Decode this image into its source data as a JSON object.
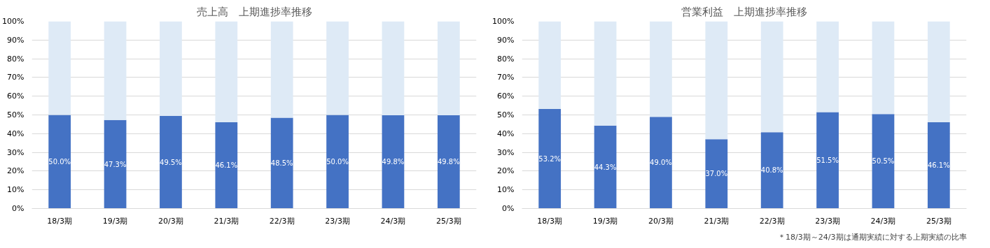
{
  "chart_data": [
    {
      "type": "bar",
      "title": "売上高　上期進捗率推移",
      "stacked": true,
      "categories": [
        "18/3期",
        "19/3期",
        "20/3期",
        "21/3期",
        "22/3期",
        "23/3期",
        "24/3期",
        "25/3期"
      ],
      "series": [
        {
          "color": "#4472c4",
          "values": [
            50.0,
            47.3,
            49.5,
            46.1,
            48.5,
            50.0,
            49.8,
            49.8
          ],
          "value_labels": [
            "50.0%",
            "47.3%",
            "49.5%",
            "46.1%",
            "48.5%",
            "50.0%",
            "49.8%",
            "49.8%"
          ]
        },
        {
          "color": "#deeaf6",
          "values": [
            50.0,
            52.7,
            50.5,
            53.9,
            51.5,
            50.0,
            50.2,
            50.2
          ]
        }
      ],
      "ylim": [
        0,
        100
      ],
      "yticks": [
        {
          "value": 0,
          "label": "0%"
        },
        {
          "value": 10,
          "label": "10%"
        },
        {
          "value": 20,
          "label": "20%"
        },
        {
          "value": 30,
          "label": "30%"
        },
        {
          "value": 40,
          "label": "40%"
        },
        {
          "value": 50,
          "label": "50%"
        },
        {
          "value": 60,
          "label": "60%"
        },
        {
          "value": 70,
          "label": "70%"
        },
        {
          "value": 80,
          "label": "80%"
        },
        {
          "value": 90,
          "label": "90%"
        },
        {
          "value": 100,
          "label": "100%"
        }
      ],
      "grid": "y"
    },
    {
      "type": "bar",
      "title": "営業利益　上期進捗率推移",
      "stacked": true,
      "categories": [
        "18/3期",
        "19/3期",
        "20/3期",
        "21/3期",
        "22/3期",
        "23/3期",
        "24/3期",
        "25/3期"
      ],
      "series": [
        {
          "color": "#4472c4",
          "values": [
            53.2,
            44.3,
            49.0,
            37.0,
            40.8,
            51.5,
            50.5,
            46.1
          ],
          "value_labels": [
            "53.2%",
            "44.3%",
            "49.0%",
            "37.0%",
            "40.8%",
            "51.5%",
            "50.5%",
            "46.1%"
          ]
        },
        {
          "color": "#deeaf6",
          "values": [
            46.8,
            55.7,
            51.0,
            63.0,
            59.2,
            48.5,
            49.5,
            53.9
          ]
        }
      ],
      "ylim": [
        0,
        100
      ],
      "yticks": [
        {
          "value": 0,
          "label": "0%"
        },
        {
          "value": 10,
          "label": "10%"
        },
        {
          "value": 20,
          "label": "20%"
        },
        {
          "value": 30,
          "label": "30%"
        },
        {
          "value": 40,
          "label": "40%"
        },
        {
          "value": 50,
          "label": "50%"
        },
        {
          "value": 60,
          "label": "60%"
        },
        {
          "value": 70,
          "label": "70%"
        },
        {
          "value": 80,
          "label": "80%"
        },
        {
          "value": 90,
          "label": "90%"
        },
        {
          "value": 100,
          "label": "100%"
        }
      ],
      "grid": "y",
      "annotations": [
        "＊18/3期～24/3期は通期実績に対する上期実績の比率"
      ]
    }
  ]
}
